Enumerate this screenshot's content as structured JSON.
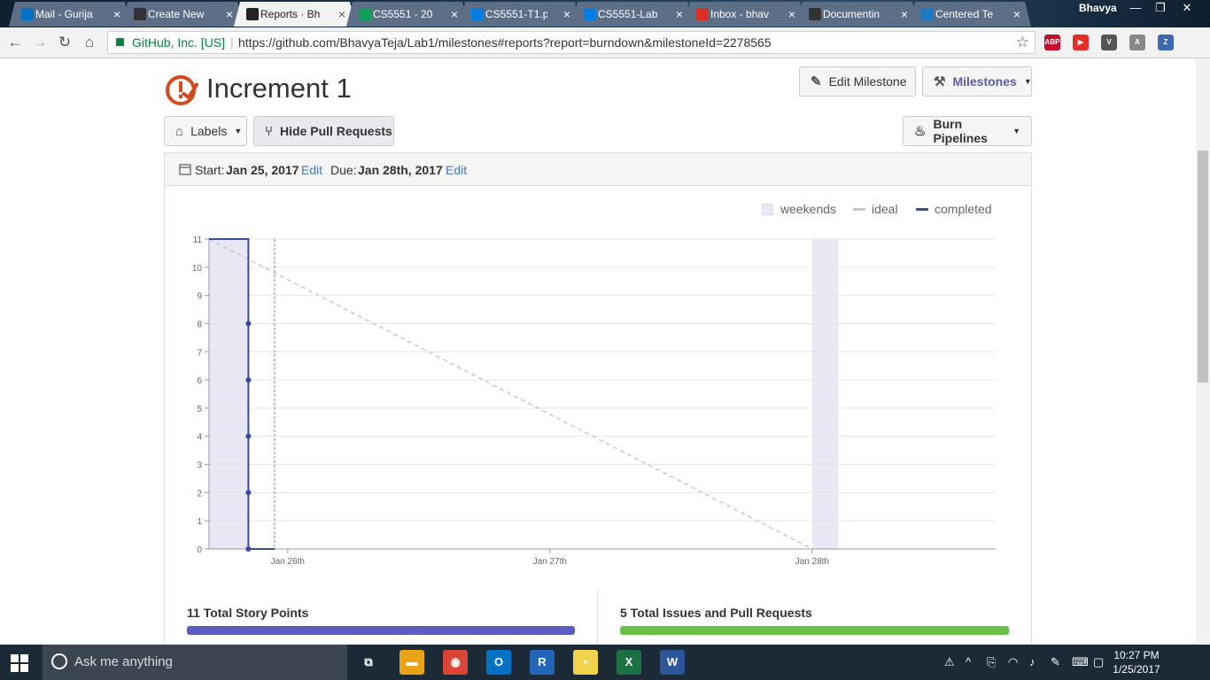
{
  "browser": {
    "tabs": [
      {
        "title": "Mail - Gurija",
        "color": "#0072c6"
      },
      {
        "title": "Create New",
        "color": "#333333"
      },
      {
        "title": "Reports · Bh",
        "color": "#222222",
        "active": true
      },
      {
        "title": "CS5551 - 20",
        "color": "#0f9d58"
      },
      {
        "title": "CS5551-T1.p",
        "color": "#007ee5"
      },
      {
        "title": "CS5551-Lab",
        "color": "#007ee5"
      },
      {
        "title": "Inbox - bhav",
        "color": "#d93025"
      },
      {
        "title": "Documentin",
        "color": "#333333"
      },
      {
        "title": "Centered Te",
        "color": "#1f78c1"
      }
    ],
    "tab_close_glyph": "×",
    "profile_name": "Bhavya",
    "window_controls": {
      "minimize": "—",
      "restore": "❐",
      "close": "✕"
    },
    "nav": {
      "back": "←",
      "forward": "→",
      "reload": "↻",
      "home": "⌂"
    },
    "org_label": "GitHub, Inc. [US]",
    "url_separator": "|",
    "url": "https://github.com/BhavyaTeja/Lab1/milestones#reports?report=burndown&milestoneId=2278565",
    "star": "☆",
    "extensions": [
      {
        "label": "ABP",
        "color": "#c70d2c"
      },
      {
        "label": "▶",
        "color": "#e52d27"
      },
      {
        "label": "V",
        "color": "#555555"
      },
      {
        "label": "A",
        "color": "#888888"
      },
      {
        "label": "Z",
        "color": "#3d6ab1"
      }
    ]
  },
  "header": {
    "title": "Increment 1",
    "edit_milestone_label": "Edit Milestone",
    "milestones_label": "Milestones",
    "labels_label": "Labels",
    "hide_pr_label": "Hide Pull Requests",
    "burn_pipelines_label": "Burn Pipelines",
    "caret": "▼",
    "icon_pencil": "✎",
    "icon_tag": "⌂",
    "icon_pr": "⑂",
    "icon_flame": "♨",
    "icon_hammer": "⚒"
  },
  "dates": {
    "start_label": "Start:",
    "start_value": "Jan 25, 2017",
    "due_label": "Due:",
    "due_value": "Jan 28th, 2017",
    "edit_label": "Edit"
  },
  "legend": {
    "weekends": "weekends",
    "ideal": "ideal",
    "completed": "completed"
  },
  "chart_data": {
    "type": "line",
    "ylim": [
      0,
      11
    ],
    "yticks": [
      "0",
      "1",
      "2",
      "3",
      "4",
      "5",
      "6",
      "7",
      "8",
      "9",
      "10",
      "11"
    ],
    "xticks": [
      "Jan 26th",
      "Jan 27th",
      "Jan 28th"
    ],
    "xlim_days": [
      0,
      3
    ],
    "xtick_days": [
      0.3,
      1.3,
      2.3
    ],
    "series": [
      {
        "name": "ideal",
        "color": "#c8c8c8",
        "x": [
          0,
          2.3
        ],
        "y": [
          11,
          0
        ]
      },
      {
        "name": "completed",
        "color": "#3b4a9b",
        "x": [
          0,
          0.15,
          0.15,
          0.15,
          0.15,
          0.15,
          0.15,
          0.25
        ],
        "y": [
          11,
          11,
          8,
          6,
          4,
          2,
          0,
          0
        ]
      }
    ],
    "points": [
      {
        "x": 0.15,
        "y": 8
      },
      {
        "x": 0.15,
        "y": 6
      },
      {
        "x": 0.15,
        "y": 4
      },
      {
        "x": 0.15,
        "y": 2
      },
      {
        "x": 0.15,
        "y": 0
      }
    ],
    "today_marker_day": 0.25,
    "weekend_shading_days": [
      [
        0,
        0.15
      ],
      [
        2.3,
        2.4
      ]
    ],
    "grid": true
  },
  "stats": {
    "story_points": "11 Total Story Points",
    "issues": "5 Total Issues and Pull Requests",
    "story_color": "#5c5ec2",
    "issues_color": "#6cc04a"
  },
  "taskbar": {
    "search_placeholder": "Ask me anything",
    "apps": [
      {
        "label": "⧉",
        "color": "#1c2a37"
      },
      {
        "label": "▬",
        "color": "#e8a317"
      },
      {
        "label": "◉",
        "color": "#db4437"
      },
      {
        "label": "O",
        "color": "#0072c6"
      },
      {
        "label": "R",
        "color": "#2165b6"
      },
      {
        "label": "▪",
        "color": "#f2d34b"
      },
      {
        "label": "X",
        "color": "#1e7145"
      },
      {
        "label": "W",
        "color": "#2b579a"
      }
    ],
    "time": "10:27 PM",
    "date": "1/25/2017",
    "tray_icons": [
      "⚠",
      "^",
      "⎘",
      "◠",
      "♪",
      "✎",
      "⌨",
      "▢"
    ]
  }
}
